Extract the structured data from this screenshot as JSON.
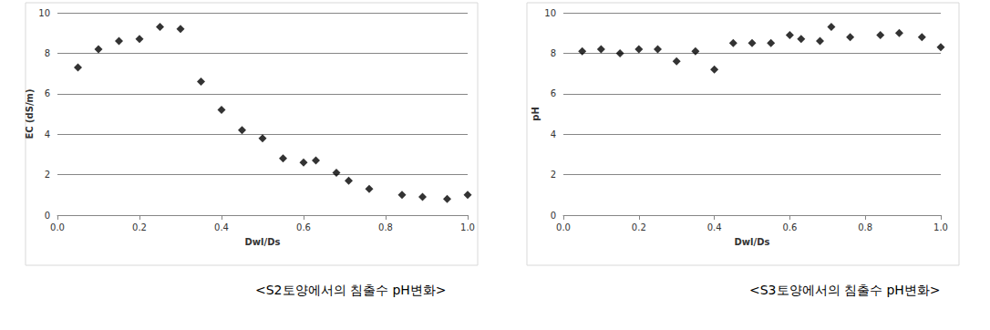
{
  "chart_data": [
    {
      "type": "scatter",
      "title": "<S2토양에서의 침출수 pH변화>",
      "x_label": "Dwl/Ds",
      "y_label": "EC (dS/m)",
      "x": [
        0.05,
        0.1,
        0.15,
        0.2,
        0.25,
        0.3,
        0.35,
        0.4,
        0.45,
        0.5,
        0.55,
        0.6,
        0.63,
        0.68,
        0.71,
        0.76,
        0.84,
        0.89,
        0.95,
        1.0
      ],
      "values": [
        7.3,
        8.2,
        8.6,
        8.7,
        9.3,
        9.2,
        6.6,
        5.2,
        4.2,
        3.8,
        2.8,
        2.6,
        2.7,
        2.1,
        1.7,
        1.3,
        1.0,
        0.9,
        0.8,
        1.0
      ],
      "color": "#000000",
      "marker": "diamond",
      "xlim": [
        0,
        1
      ],
      "xticks": [
        {
          "value": 0,
          "label": "0.0"
        },
        0.2,
        0.4,
        0.6,
        0.8,
        {
          "value": 1,
          "label": "1.0"
        }
      ],
      "ylim": [
        0,
        10
      ],
      "yticks": [
        0,
        2,
        4,
        6,
        8,
        10
      ],
      "grid": true
    },
    {
      "type": "scatter",
      "title": "<S3토양에서의 침출수 pH변화>",
      "x_label": "Dwl/Ds",
      "y_label": "pH",
      "x": [
        0.05,
        0.1,
        0.15,
        0.2,
        0.25,
        0.3,
        0.35,
        0.4,
        0.45,
        0.5,
        0.55,
        0.6,
        0.63,
        0.68,
        0.71,
        0.76,
        0.84,
        0.89,
        0.95,
        1.0
      ],
      "values": [
        8.1,
        8.2,
        8.0,
        8.2,
        8.2,
        7.6,
        8.1,
        7.2,
        8.5,
        8.5,
        8.5,
        8.9,
        8.7,
        8.6,
        9.3,
        8.8,
        8.9,
        9.0,
        8.8,
        8.3
      ],
      "color": "#000000",
      "marker": "diamond",
      "xlim": [
        0,
        1
      ],
      "xticks": [
        {
          "value": 0,
          "label": "0.0"
        },
        0.2,
        0.4,
        0.6,
        0.8,
        {
          "value": 1,
          "label": "1.0"
        }
      ],
      "ylim": [
        0,
        10
      ],
      "yticks": [
        0,
        2,
        4,
        6,
        8,
        10
      ],
      "grid": true
    }
  ]
}
